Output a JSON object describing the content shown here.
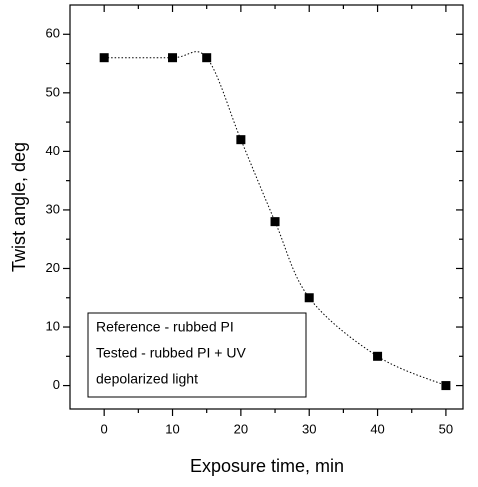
{
  "chart_data": {
    "type": "scatter",
    "x_label": "Exposure time, min",
    "y_label": "Twist angle, deg",
    "x": [
      0,
      10,
      15,
      20,
      25,
      30,
      40,
      50
    ],
    "series": [
      {
        "values": [
          56,
          56,
          56,
          42,
          28,
          15,
          5,
          0
        ],
        "color": "#000000",
        "marker": "square",
        "line_style": "dotted"
      }
    ],
    "xlim": [
      -5,
      52.5
    ],
    "ylim": [
      -4,
      65
    ],
    "xticks": [
      0,
      10,
      20,
      30,
      40,
      50
    ],
    "yticks": [
      0,
      10,
      20,
      30,
      40,
      50,
      60
    ],
    "xminorticks": [
      5,
      15,
      25,
      35,
      45
    ],
    "yminorticks": [
      5,
      15,
      25,
      35,
      45,
      55
    ],
    "annotation": [
      "Reference - rubbed PI",
      "Tested - rubbed PI + UV",
      "depolarized light"
    ]
  }
}
